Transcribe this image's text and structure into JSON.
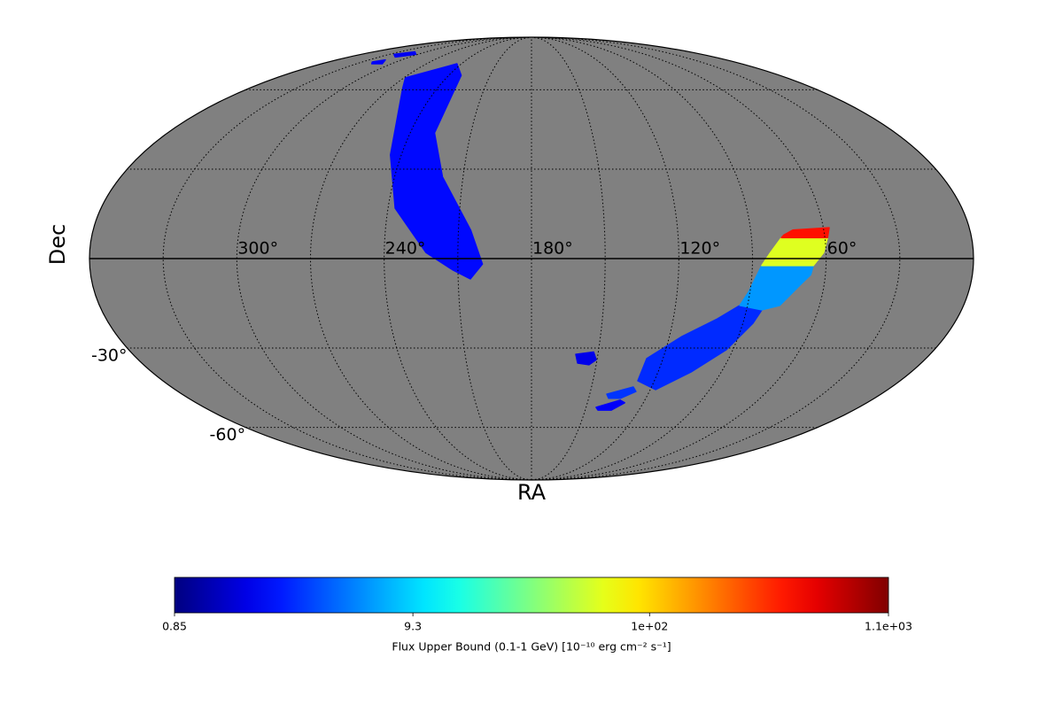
{
  "chart_data": {
    "type": "skymap",
    "projection": "mollweide",
    "xlabel": "RA",
    "ylabel": "Dec",
    "background": "#808080",
    "grid": true,
    "grid_ra": [
      30,
      60,
      90,
      120,
      150,
      180,
      210,
      240,
      270,
      300,
      330
    ],
    "grid_dec": [
      -60,
      -30,
      0,
      30,
      60
    ],
    "xticks": [
      {
        "value": 300,
        "label": "300°"
      },
      {
        "value": 240,
        "label": "240°"
      },
      {
        "value": 180,
        "label": "180°"
      },
      {
        "value": 120,
        "label": "120°"
      },
      {
        "value": 60,
        "label": "60°"
      }
    ],
    "yticks": [
      {
        "value": -30,
        "label": "-30°"
      },
      {
        "value": -60,
        "label": "-60°"
      }
    ],
    "regions": [
      {
        "ra": [
          269,
          244,
          231,
          228,
          219,
          205,
          200,
          205,
          212,
          223,
          237,
          245,
          262
        ],
        "dec": [
          65.3,
          72,
          66.4,
          43,
          27.3,
          9.4,
          -1.8,
          -6.7,
          -3.8,
          2,
          16.7,
          35,
          60.6
        ],
        "value": 2.2
      },
      {
        "ra": [
          128.1,
          117.3,
          104.4,
          92.9,
          85.7,
          83.6,
          93.2,
          101.3,
          114.5,
          127.4
        ],
        "dec": [
          -41.7,
          -45,
          -38.5,
          -30.6,
          -21.5,
          -17,
          -15.5,
          -20,
          -26,
          -33.7
        ],
        "value": 2.8
      },
      {
        "ra": [
          93.2,
          83.6,
          76.6,
          69.3,
          66,
          65.2,
          86.2,
          90.6
        ],
        "dec": [
          -15.5,
          -17,
          -15.5,
          -8.2,
          -5.3,
          -2.3,
          -2.3,
          -11.1
        ],
        "value": 6
      },
      {
        "ra": [
          86.2,
          65.2,
          61,
          58.9,
          77.8,
          82.6
        ],
        "dec": [
          -2.3,
          -2.3,
          2,
          6.9,
          6.9,
          2
        ],
        "value": 60
      },
      {
        "ra": [
          77.8,
          58.9,
          57.6,
          72.7,
          76.6
        ],
        "dec": [
          6.9,
          6.9,
          10.2,
          9.4,
          7.8
        ],
        "value": 400
      },
      {
        "ra": [
          160,
          152.1,
          150.4,
          153.3,
          158.7
        ],
        "dec": [
          -32.2,
          -31.4,
          -34.1,
          -35.9,
          -35.3
        ],
        "value": 1.8
      },
      {
        "ra": [
          141.2,
          129.1,
          126.8,
          133.4,
          139.5
        ],
        "dec": [
          -46.7,
          -44,
          -45.7,
          -48.3,
          -48.3
        ],
        "value": 3
      },
      {
        "ra": [
          144.5,
          133,
          130,
          135.4,
          142.9
        ],
        "dec": [
          -51.8,
          -49,
          -50,
          -52.9,
          -52.9
        ],
        "value": 2
      },
      {
        "ra": [
          325,
          313,
          302,
          314
        ],
        "dec": [
          77,
          78.5,
          77,
          75.5
        ],
        "value": 1.9
      },
      {
        "ra": [
          321,
          315,
          308,
          317
        ],
        "dec": [
          72.9,
          74,
          72,
          72
        ],
        "value": 2
      }
    ],
    "colorbar": {
      "label": "Flux Upper Bound (0.1-1 GeV) [10⁻¹⁰ erg cm⁻² s⁻¹]",
      "colormap": "jet",
      "log": true,
      "lim": [
        0.85,
        1100
      ],
      "ticks": [
        0.85,
        9.3,
        {
          "value": 100,
          "label": "1e+02"
        },
        {
          "value": 1100,
          "label": "1.1e+03"
        }
      ]
    }
  }
}
